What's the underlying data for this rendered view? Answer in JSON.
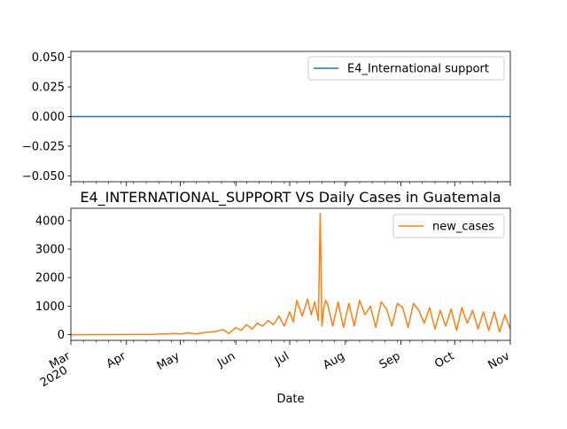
{
  "chart_data": [
    {
      "type": "line",
      "title": "",
      "xlabel": "",
      "ylabel": "",
      "ylim": [
        -0.055,
        0.055
      ],
      "yticks": [
        0.05,
        0.025,
        0.0,
        -0.025,
        -0.05
      ],
      "ytick_labels": [
        "0.050",
        "0.025",
        "0.000",
        "−0.025",
        "−0.050"
      ],
      "legend_position": "top-right",
      "grid": false,
      "series": [
        {
          "name": "E4_International support",
          "color": "#1f77b4",
          "x": [
            "2020-03-01",
            "2020-11-01"
          ],
          "y": [
            0,
            0
          ]
        }
      ]
    },
    {
      "type": "line",
      "title": "E4_INTERNATIONAL_SUPPORT VS Daily Cases in Guatemala",
      "xlabel": "Date",
      "ylabel": "",
      "xlim": [
        "2020-03-01",
        "2020-11-01"
      ],
      "ylim": [
        -200,
        4430
      ],
      "yticks": [
        0,
        1000,
        2000,
        3000,
        4000
      ],
      "ytick_labels": [
        "0",
        "1000",
        "2000",
        "3000",
        "4000"
      ],
      "xtick_labels": [
        {
          "date": "2020-03-01",
          "label": "Mar",
          "sublabel": "2020"
        },
        {
          "date": "2020-04-01",
          "label": "Apr",
          "sublabel": ""
        },
        {
          "date": "2020-05-01",
          "label": "May",
          "sublabel": ""
        },
        {
          "date": "2020-06-01",
          "label": "Jun",
          "sublabel": ""
        },
        {
          "date": "2020-07-01",
          "label": "Jul",
          "sublabel": ""
        },
        {
          "date": "2020-08-01",
          "label": "Aug",
          "sublabel": ""
        },
        {
          "date": "2020-09-01",
          "label": "Sep",
          "sublabel": ""
        },
        {
          "date": "2020-10-01",
          "label": "Oct",
          "sublabel": ""
        },
        {
          "date": "2020-11-01",
          "label": "Nov",
          "sublabel": ""
        }
      ],
      "legend_position": "top-right",
      "grid": false,
      "series": [
        {
          "name": "new_cases",
          "color": "#ff7f0e",
          "x": [
            "2020-03-01",
            "2020-03-15",
            "2020-04-01",
            "2020-04-15",
            "2020-04-28",
            "2020-05-01",
            "2020-05-05",
            "2020-05-10",
            "2020-05-15",
            "2020-05-20",
            "2020-05-25",
            "2020-05-28",
            "2020-06-01",
            "2020-06-04",
            "2020-06-07",
            "2020-06-10",
            "2020-06-13",
            "2020-06-16",
            "2020-06-19",
            "2020-06-22",
            "2020-06-25",
            "2020-06-28",
            "2020-07-01",
            "2020-07-03",
            "2020-07-05",
            "2020-07-08",
            "2020-07-11",
            "2020-07-13",
            "2020-07-15",
            "2020-07-17",
            "2020-07-18",
            "2020-07-19",
            "2020-07-20",
            "2020-07-21",
            "2020-07-22",
            "2020-07-25",
            "2020-07-28",
            "2020-07-31",
            "2020-08-03",
            "2020-08-06",
            "2020-08-09",
            "2020-08-12",
            "2020-08-15",
            "2020-08-18",
            "2020-08-21",
            "2020-08-24",
            "2020-08-27",
            "2020-08-30",
            "2020-09-02",
            "2020-09-05",
            "2020-09-08",
            "2020-09-11",
            "2020-09-14",
            "2020-09-17",
            "2020-09-20",
            "2020-09-23",
            "2020-09-26",
            "2020-09-29",
            "2020-10-02",
            "2020-10-05",
            "2020-10-08",
            "2020-10-11",
            "2020-10-14",
            "2020-10-17",
            "2020-10-20",
            "2020-10-23",
            "2020-10-26",
            "2020-10-29",
            "2020-11-01"
          ],
          "y": [
            0,
            2,
            5,
            10,
            40,
            20,
            60,
            30,
            80,
            100,
            180,
            40,
            250,
            150,
            350,
            200,
            400,
            300,
            500,
            350,
            650,
            300,
            800,
            450,
            1200,
            650,
            1250,
            700,
            1150,
            500,
            4250,
            300,
            950,
            1200,
            1100,
            300,
            1150,
            250,
            1100,
            300,
            1200,
            700,
            1000,
            250,
            1150,
            900,
            300,
            1100,
            950,
            250,
            1100,
            850,
            400,
            950,
            200,
            850,
            300,
            900,
            150,
            950,
            400,
            850,
            200,
            800,
            150,
            800,
            100,
            700,
            200
          ]
        }
      ]
    }
  ]
}
